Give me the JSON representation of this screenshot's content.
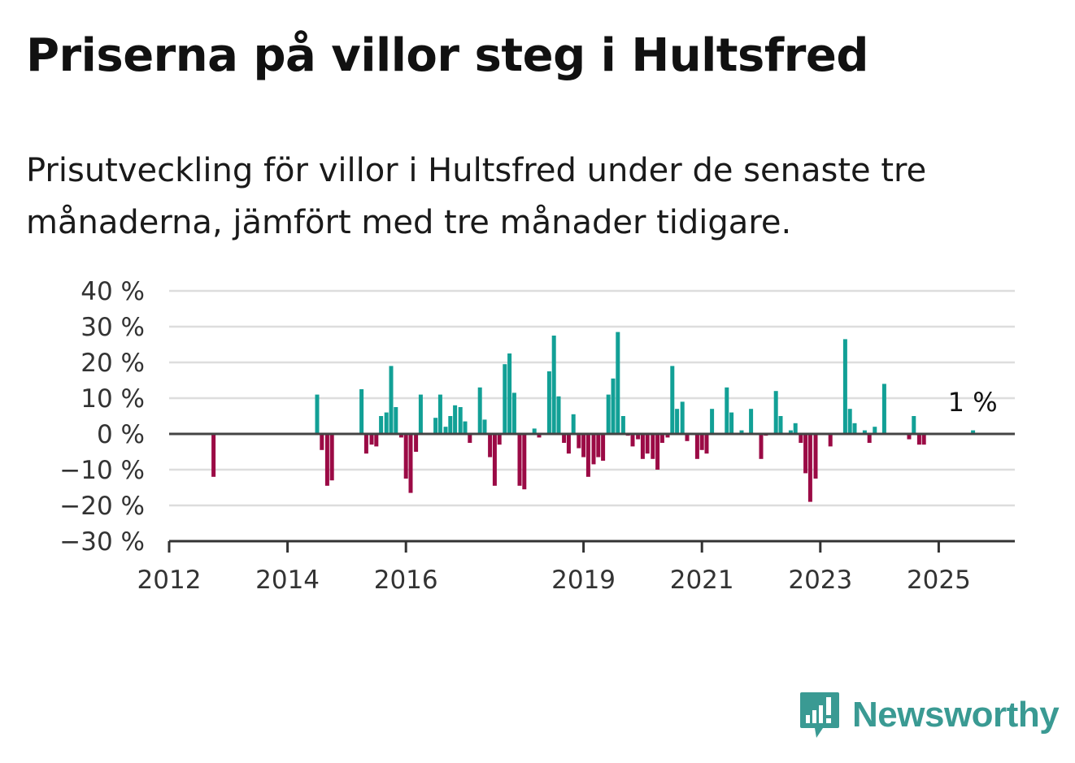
{
  "title": "Priserna på villor steg i Hultsfred",
  "subtitle": "Prisutveckling för villor i Hultsfred under de senaste tre månaderna, jämfört med tre månader tidigare.",
  "brand": {
    "name": "Newsworthy",
    "color": "#3a9a93"
  },
  "colors": {
    "positive": "#12a096",
    "negative": "#9b0a45",
    "grid": "#dddddd",
    "axis": "#333333"
  },
  "chart_data": {
    "type": "bar",
    "title": "Priserna på villor steg i Hultsfred",
    "xlabel": "",
    "ylabel": "",
    "ylim": [
      -30,
      40
    ],
    "xlim": [
      2012.0,
      2026.25
    ],
    "grid": true,
    "y_ticks": [
      40,
      30,
      20,
      10,
      0,
      -10,
      -20,
      -30
    ],
    "y_tick_labels": [
      "40 %",
      "30 %",
      "20 %",
      "10 %",
      "0 %",
      "−10 %",
      "−20 %",
      "−30 %"
    ],
    "x_ticks": [
      2012,
      2014,
      2016,
      2019,
      2021,
      2023,
      2025
    ],
    "x_tick_labels": [
      "2012",
      "2014",
      "2016",
      "2019",
      "2021",
      "2023",
      "2025"
    ],
    "annotation": {
      "text": "1 %",
      "x": 2025.58,
      "y": 1
    },
    "bars": [
      {
        "x": 2012.75,
        "y": -12
      },
      {
        "x": 2014.5,
        "y": 11
      },
      {
        "x": 2014.58,
        "y": -4.5
      },
      {
        "x": 2014.67,
        "y": -14.5
      },
      {
        "x": 2014.75,
        "y": -13
      },
      {
        "x": 2015.25,
        "y": 12.5
      },
      {
        "x": 2015.33,
        "y": -5.5
      },
      {
        "x": 2015.42,
        "y": -3
      },
      {
        "x": 2015.5,
        "y": -3.5
      },
      {
        "x": 2015.58,
        "y": 5
      },
      {
        "x": 2015.67,
        "y": 6
      },
      {
        "x": 2015.75,
        "y": 19
      },
      {
        "x": 2015.83,
        "y": 7.5
      },
      {
        "x": 2015.92,
        "y": -1
      },
      {
        "x": 2016.0,
        "y": -12.5
      },
      {
        "x": 2016.08,
        "y": -16.5
      },
      {
        "x": 2016.17,
        "y": -5
      },
      {
        "x": 2016.25,
        "y": 11
      },
      {
        "x": 2016.5,
        "y": 4.5
      },
      {
        "x": 2016.58,
        "y": 11
      },
      {
        "x": 2016.67,
        "y": 2
      },
      {
        "x": 2016.75,
        "y": 5
      },
      {
        "x": 2016.83,
        "y": 8
      },
      {
        "x": 2016.92,
        "y": 7.5
      },
      {
        "x": 2017.0,
        "y": 3.5
      },
      {
        "x": 2017.08,
        "y": -2.5
      },
      {
        "x": 2017.25,
        "y": 13
      },
      {
        "x": 2017.33,
        "y": 4
      },
      {
        "x": 2017.42,
        "y": -6.5
      },
      {
        "x": 2017.5,
        "y": -14.5
      },
      {
        "x": 2017.58,
        "y": -3
      },
      {
        "x": 2017.67,
        "y": 19.5
      },
      {
        "x": 2017.75,
        "y": 22.5
      },
      {
        "x": 2017.83,
        "y": 11.5
      },
      {
        "x": 2017.92,
        "y": -14.5
      },
      {
        "x": 2018.0,
        "y": -15.5
      },
      {
        "x": 2018.17,
        "y": 1.5
      },
      {
        "x": 2018.25,
        "y": -1
      },
      {
        "x": 2018.42,
        "y": 17.5
      },
      {
        "x": 2018.5,
        "y": 27.5
      },
      {
        "x": 2018.58,
        "y": 10.5
      },
      {
        "x": 2018.67,
        "y": -2.5
      },
      {
        "x": 2018.75,
        "y": -5.5
      },
      {
        "x": 2018.83,
        "y": 5.5
      },
      {
        "x": 2018.92,
        "y": -4
      },
      {
        "x": 2019.0,
        "y": -6.5
      },
      {
        "x": 2019.08,
        "y": -12
      },
      {
        "x": 2019.17,
        "y": -8.5
      },
      {
        "x": 2019.25,
        "y": -6.5
      },
      {
        "x": 2019.33,
        "y": -7.5
      },
      {
        "x": 2019.42,
        "y": 11
      },
      {
        "x": 2019.5,
        "y": 15.5
      },
      {
        "x": 2019.58,
        "y": 28.5
      },
      {
        "x": 2019.67,
        "y": 5
      },
      {
        "x": 2019.75,
        "y": -0.5
      },
      {
        "x": 2019.83,
        "y": -3.5
      },
      {
        "x": 2019.92,
        "y": -1.5
      },
      {
        "x": 2020.0,
        "y": -7
      },
      {
        "x": 2020.08,
        "y": -5.5
      },
      {
        "x": 2020.17,
        "y": -7
      },
      {
        "x": 2020.25,
        "y": -10
      },
      {
        "x": 2020.33,
        "y": -2.5
      },
      {
        "x": 2020.42,
        "y": -1
      },
      {
        "x": 2020.5,
        "y": 19
      },
      {
        "x": 2020.58,
        "y": 7
      },
      {
        "x": 2020.67,
        "y": 9
      },
      {
        "x": 2020.75,
        "y": -2
      },
      {
        "x": 2020.92,
        "y": -7
      },
      {
        "x": 2021.0,
        "y": -4.5
      },
      {
        "x": 2021.08,
        "y": -5.5
      },
      {
        "x": 2021.17,
        "y": 7
      },
      {
        "x": 2021.42,
        "y": 13
      },
      {
        "x": 2021.5,
        "y": 6
      },
      {
        "x": 2021.67,
        "y": 1
      },
      {
        "x": 2021.83,
        "y": 7
      },
      {
        "x": 2022.0,
        "y": -7
      },
      {
        "x": 2022.08,
        "y": -0.5
      },
      {
        "x": 2022.25,
        "y": 12
      },
      {
        "x": 2022.33,
        "y": 5
      },
      {
        "x": 2022.5,
        "y": 1
      },
      {
        "x": 2022.58,
        "y": 3
      },
      {
        "x": 2022.67,
        "y": -2.5
      },
      {
        "x": 2022.75,
        "y": -11
      },
      {
        "x": 2022.83,
        "y": -19
      },
      {
        "x": 2022.92,
        "y": -12.5
      },
      {
        "x": 2023.17,
        "y": -3.5
      },
      {
        "x": 2023.42,
        "y": 26.5
      },
      {
        "x": 2023.5,
        "y": 7
      },
      {
        "x": 2023.58,
        "y": 3
      },
      {
        "x": 2023.75,
        "y": 1
      },
      {
        "x": 2023.83,
        "y": -2.5
      },
      {
        "x": 2023.92,
        "y": 2
      },
      {
        "x": 2024.08,
        "y": 14
      },
      {
        "x": 2024.5,
        "y": -1.5
      },
      {
        "x": 2024.58,
        "y": 5
      },
      {
        "x": 2024.67,
        "y": -3
      },
      {
        "x": 2024.75,
        "y": -3
      },
      {
        "x": 2025.58,
        "y": 1
      }
    ]
  }
}
